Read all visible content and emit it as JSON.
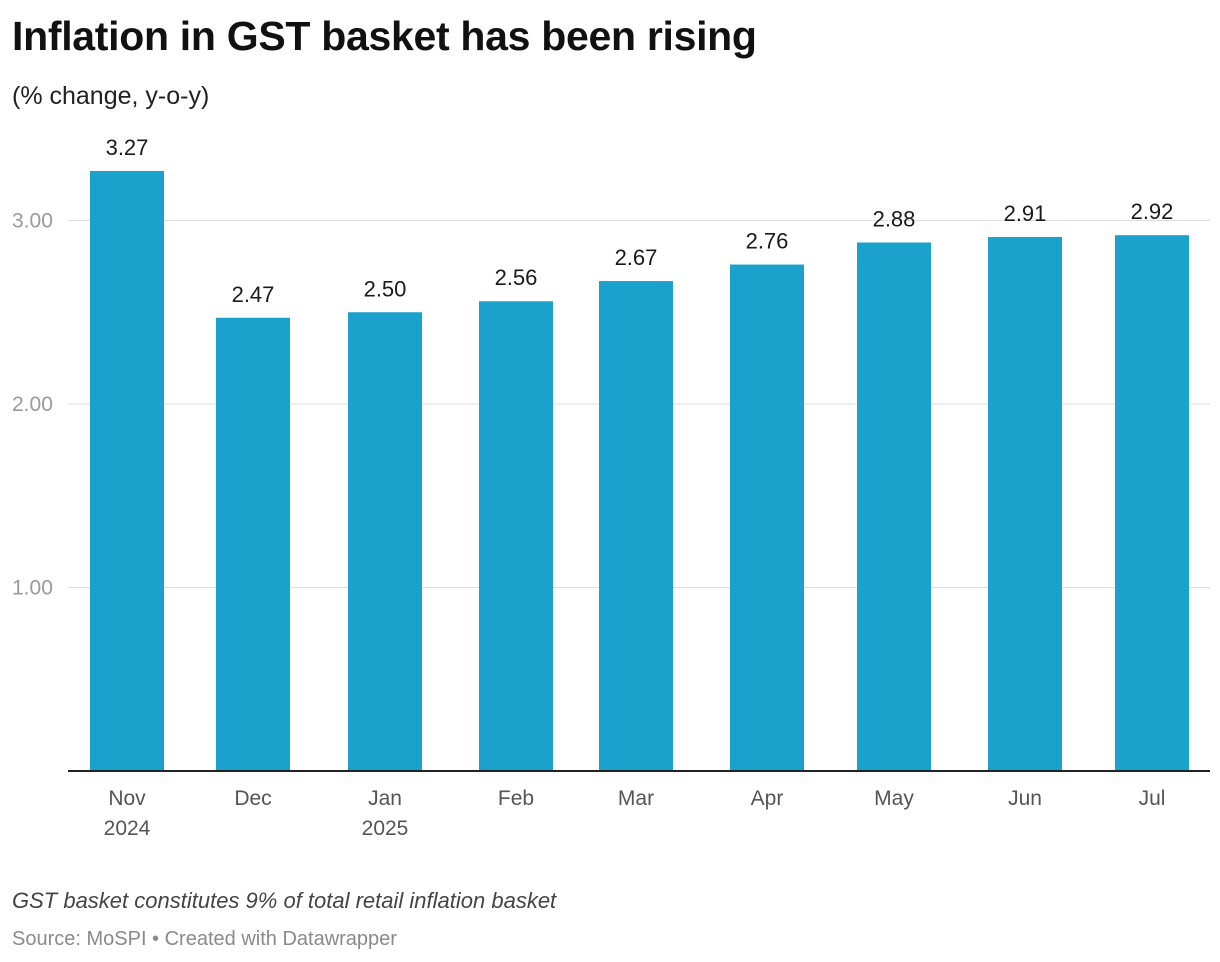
{
  "header": {
    "title": "Inflation in GST basket has been rising",
    "subtitle": "(% change, y-o-y)"
  },
  "footer": {
    "note": "GST basket constitutes 9% of total retail inflation basket",
    "source": "Source: MoSPI • Created with Datawrapper"
  },
  "chart_data": {
    "type": "bar",
    "title": "Inflation in GST basket has been rising",
    "subtitle": "(% change, y-o-y)",
    "xlabel": "",
    "ylabel": "",
    "categories": [
      [
        "Nov",
        "2024"
      ],
      [
        "Dec"
      ],
      [
        "Jan",
        "2025"
      ],
      [
        "Feb"
      ],
      [
        "Mar"
      ],
      [
        "Apr"
      ],
      [
        "May"
      ],
      [
        "Jun"
      ],
      [
        "Jul"
      ]
    ],
    "values": [
      3.27,
      2.47,
      2.5,
      2.56,
      2.67,
      2.76,
      2.88,
      2.91,
      2.92
    ],
    "value_labels": [
      "3.27",
      "2.47",
      "2.50",
      "2.56",
      "2.67",
      "2.76",
      "2.88",
      "2.91",
      "2.92"
    ],
    "yticks": [
      1,
      2,
      3
    ],
    "ytick_labels": [
      "1.00",
      "2.00",
      "3.00"
    ],
    "ylim": [
      0,
      3.27
    ],
    "grid": true,
    "bar_color": "#1aa1cc"
  }
}
